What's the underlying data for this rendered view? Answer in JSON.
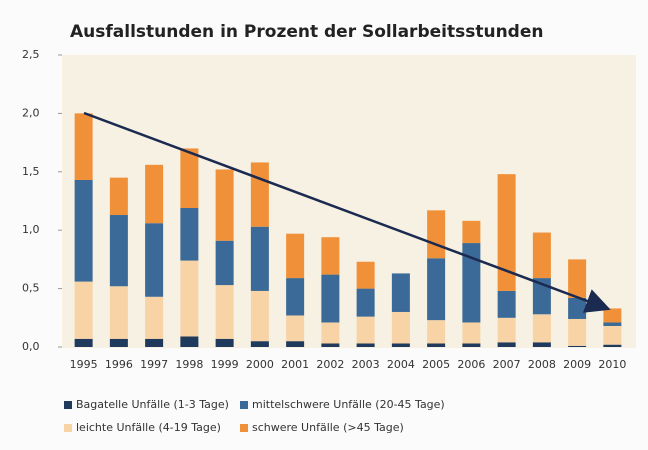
{
  "chart_data": {
    "type": "stacked_bar",
    "title": "Ausfallstunden in Prozent der Sollarbeitsstunden",
    "categories": [
      "1995",
      "1996",
      "1997",
      "1998",
      "1999",
      "2000",
      "2001",
      "2002",
      "2003",
      "2004",
      "2005",
      "2006",
      "2007",
      "2008",
      "2009",
      "2010"
    ],
    "series": [
      {
        "name": "Bagatelle Unfälle (1-3 Tage)",
        "color": "#1f3a5c",
        "values": [
          0.07,
          0.07,
          0.07,
          0.09,
          0.07,
          0.05,
          0.05,
          0.03,
          0.03,
          0.03,
          0.03,
          0.03,
          0.04,
          0.04,
          0.01,
          0.02
        ]
      },
      {
        "name": "leichte Unfälle (4-19 Tage)",
        "color": "#f8d3a6",
        "values": [
          0.49,
          0.45,
          0.36,
          0.65,
          0.46,
          0.43,
          0.22,
          0.18,
          0.23,
          0.27,
          0.2,
          0.18,
          0.21,
          0.24,
          0.23,
          0.16
        ]
      },
      {
        "name": "mittelschwere Unfälle (20-45 Tage)",
        "color": "#3b6a98",
        "values": [
          0.87,
          0.61,
          0.63,
          0.45,
          0.38,
          0.55,
          0.32,
          0.41,
          0.24,
          0.33,
          0.53,
          0.68,
          0.23,
          0.31,
          0.18,
          0.03
        ]
      },
      {
        "name": "schwere Unfälle (>45 Tage)",
        "color": "#f0913a",
        "values": [
          0.57,
          0.32,
          0.5,
          0.51,
          0.61,
          0.55,
          0.38,
          0.32,
          0.23,
          0,
          0.41,
          0.19,
          1.0,
          0.39,
          0.33,
          0.12
        ]
      }
    ],
    "ylim": [
      0,
      2.5
    ],
    "yticks": [
      {
        "value": 0,
        "label": "0,0"
      },
      {
        "value": 0.5,
        "label": "0,5"
      },
      {
        "value": 1,
        "label": "1,0"
      },
      {
        "value": 1.5,
        "label": "1,5"
      },
      {
        "value": 2,
        "label": "2,0"
      },
      {
        "value": 2.5,
        "label": "2,5"
      }
    ]
  }
}
